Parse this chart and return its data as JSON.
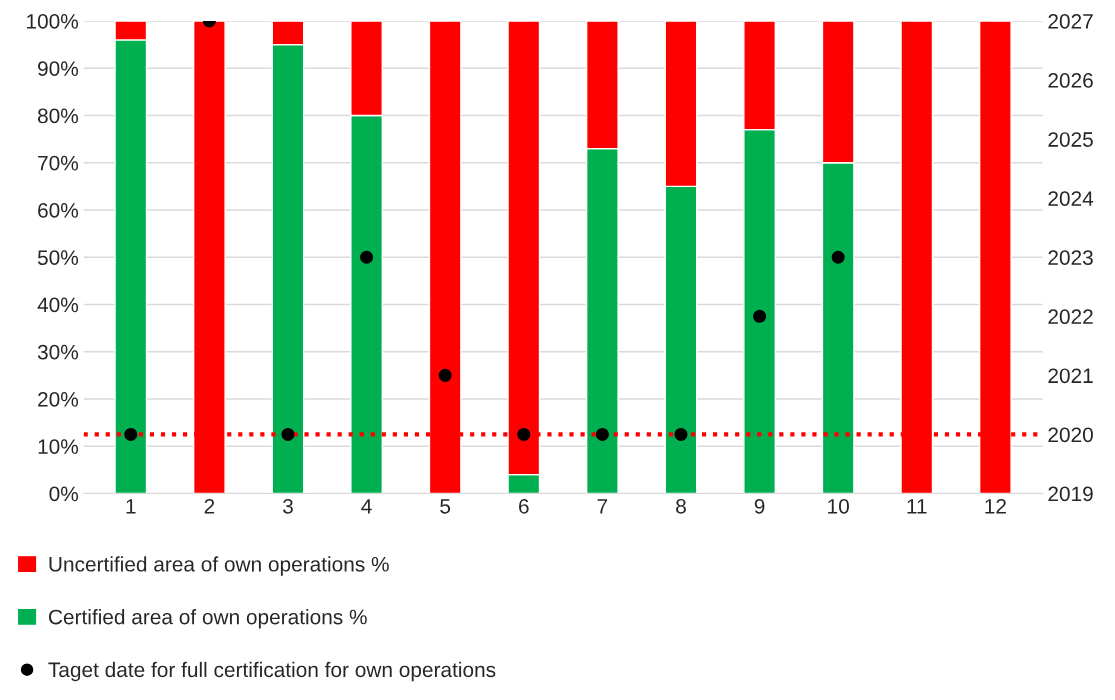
{
  "chart_data": {
    "type": "bar",
    "stacked": true,
    "categories": [
      "1",
      "2",
      "3",
      "4",
      "5",
      "6",
      "7",
      "8",
      "9",
      "10",
      "11",
      "12"
    ],
    "series": [
      {
        "name": "Certified area of own operations %",
        "color": "#00b050",
        "values": [
          96,
          0,
          95,
          80,
          0,
          4,
          73,
          65,
          77,
          70,
          0,
          0
        ]
      },
      {
        "name": "Uncertified area of own operations %",
        "color": "#ff0000",
        "values": [
          4,
          100,
          5,
          20,
          100,
          96,
          27,
          35,
          23,
          30,
          100,
          100
        ]
      },
      {
        "name": "Taget date for full certification for own operations",
        "type": "scatter",
        "axis": "y2",
        "color": "#000000",
        "marker": "circle",
        "values": [
          2020,
          2027,
          2020,
          2023,
          2021,
          2020,
          2020,
          2020,
          2022,
          2023,
          null,
          null
        ]
      }
    ],
    "ylim": [
      0,
      100
    ],
    "yticks": [
      {
        "value": 0,
        "label": "0%"
      },
      {
        "value": 10,
        "label": "10%"
      },
      {
        "value": 20,
        "label": "20%"
      },
      {
        "value": 30,
        "label": "30%"
      },
      {
        "value": 40,
        "label": "40%"
      },
      {
        "value": 50,
        "label": "50%"
      },
      {
        "value": 60,
        "label": "60%"
      },
      {
        "value": 70,
        "label": "70%"
      },
      {
        "value": 80,
        "label": "80%"
      },
      {
        "value": 90,
        "label": "90%"
      },
      {
        "value": 100,
        "label": "100%"
      }
    ],
    "y2lim": [
      2019,
      2027
    ],
    "y2ticks": [
      2019,
      2020,
      2021,
      2022,
      2023,
      2024,
      2025,
      2026,
      2027
    ],
    "ref_lines": [
      {
        "axis": "y2",
        "value": 2020,
        "color": "#ff0000",
        "line_style": "dotted"
      }
    ],
    "grid": "y",
    "legend": "bottom"
  }
}
